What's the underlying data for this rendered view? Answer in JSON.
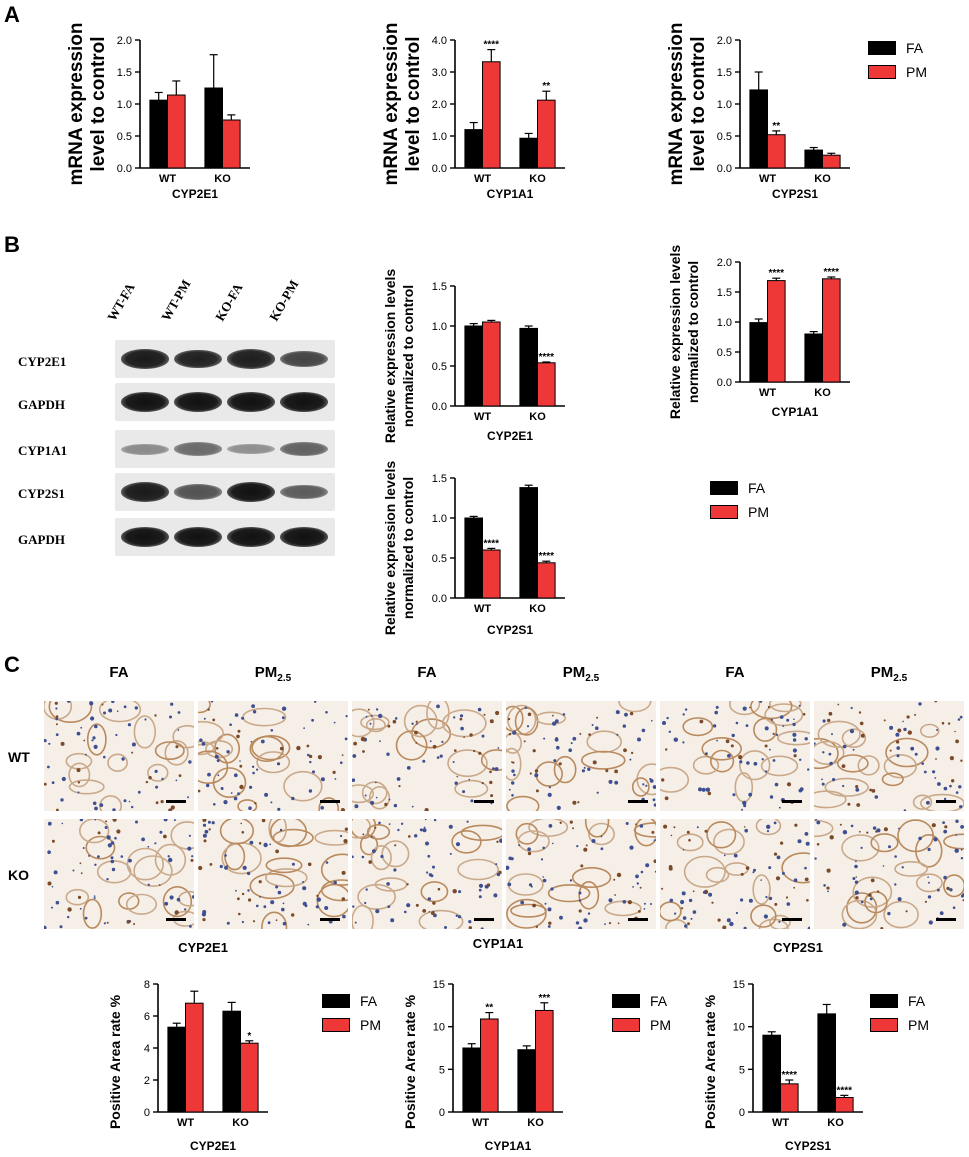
{
  "panel_letters": {
    "a": "A",
    "b": "B",
    "c": "C"
  },
  "colors": {
    "fa": "#000000",
    "pm": "#ee3838"
  },
  "legend": {
    "fa": "FA",
    "pm": "PM"
  },
  "blot": {
    "lanes": [
      "WT-FA",
      "WT-PM",
      "KO-FA",
      "KO-PM"
    ],
    "rows": [
      {
        "label": "CYP2E1",
        "intensities": [
          0.95,
          0.9,
          0.92,
          0.7
        ]
      },
      {
        "label": "GAPDH",
        "intensities": [
          1.0,
          1.0,
          1.0,
          1.0
        ]
      },
      {
        "label": "CYP1A1",
        "intensities": [
          0.25,
          0.45,
          0.22,
          0.5
        ]
      },
      {
        "label": "CYP2S1",
        "intensities": [
          0.95,
          0.6,
          1.0,
          0.55
        ]
      },
      {
        "label": "GAPDH",
        "intensities": [
          1.0,
          1.0,
          1.0,
          1.0
        ]
      }
    ]
  },
  "ihc": {
    "col_headers": [
      {
        "main": "FA",
        "sub": ""
      },
      {
        "main": "PM",
        "sub": "2.5"
      },
      {
        "main": "FA",
        "sub": ""
      },
      {
        "main": "PM",
        "sub": "2.5"
      },
      {
        "main": "FA",
        "sub": ""
      },
      {
        "main": "PM",
        "sub": "2.5"
      }
    ],
    "row_labels": [
      "WT",
      "KO"
    ]
  },
  "chart_data": [
    {
      "id": "a1",
      "type": "bar",
      "categories": [
        "WT",
        "KO"
      ],
      "series": [
        {
          "name": "FA",
          "values": [
            1.06,
            1.25
          ],
          "errors": [
            0.12,
            0.52
          ],
          "sig": [
            "",
            ""
          ]
        },
        {
          "name": "PM",
          "values": [
            1.14,
            0.75
          ],
          "errors": [
            0.22,
            0.08
          ],
          "sig": [
            "",
            ""
          ]
        }
      ],
      "xlabel": "CYP2E1",
      "ylabel": [
        "mRNA expression",
        "level to control"
      ],
      "ylim": [
        0,
        2.0
      ],
      "yticks": [
        "0.0",
        "0.5",
        "1.0",
        "1.5",
        "2.0"
      ],
      "ytick_values": [
        0,
        0.5,
        1.0,
        1.5,
        2.0
      ]
    },
    {
      "id": "a2",
      "type": "bar",
      "categories": [
        "WT",
        "KO"
      ],
      "series": [
        {
          "name": "FA",
          "values": [
            1.2,
            0.93
          ],
          "errors": [
            0.22,
            0.15
          ],
          "sig": [
            "",
            ""
          ]
        },
        {
          "name": "PM",
          "values": [
            3.32,
            2.12
          ],
          "errors": [
            0.38,
            0.28
          ],
          "sig": [
            "****",
            "**"
          ]
        }
      ],
      "xlabel": "CYP1A1",
      "ylabel": [
        "mRNA expression",
        "level to control"
      ],
      "ylim": [
        0,
        4.0
      ],
      "yticks": [
        "0.0",
        "1.0",
        "2.0",
        "3.0",
        "4.0"
      ],
      "ytick_values": [
        0,
        1,
        2,
        3,
        4
      ]
    },
    {
      "id": "a3",
      "type": "bar",
      "categories": [
        "WT",
        "KO"
      ],
      "series": [
        {
          "name": "FA",
          "values": [
            1.22,
            0.28
          ],
          "errors": [
            0.28,
            0.04
          ],
          "sig": [
            "",
            ""
          ]
        },
        {
          "name": "PM",
          "values": [
            0.52,
            0.2
          ],
          "errors": [
            0.06,
            0.03
          ],
          "sig": [
            "**",
            ""
          ]
        }
      ],
      "xlabel": "CYP2S1",
      "ylabel": [
        "mRNA expression",
        "level to control"
      ],
      "ylim": [
        0,
        2.0
      ],
      "yticks": [
        "0.0",
        "0.5",
        "1.0",
        "1.5",
        "2.0"
      ],
      "ytick_values": [
        0,
        0.5,
        1.0,
        1.5,
        2.0
      ]
    },
    {
      "id": "b1",
      "type": "bar",
      "categories": [
        "WT",
        "KO"
      ],
      "series": [
        {
          "name": "FA",
          "values": [
            1.0,
            0.97
          ],
          "errors": [
            0.03,
            0.03
          ],
          "sig": [
            "",
            ""
          ]
        },
        {
          "name": "PM",
          "values": [
            1.05,
            0.54
          ],
          "errors": [
            0.02,
            0.01
          ],
          "sig": [
            "",
            "****"
          ]
        }
      ],
      "xlabel": "CYP2E1",
      "ylabel": [
        "Relative expression levels",
        "normalized to control"
      ],
      "ylim": [
        0,
        1.5
      ],
      "yticks": [
        "0.0",
        "0.5",
        "1.0",
        "1.5"
      ],
      "ytick_values": [
        0,
        0.5,
        1.0,
        1.5
      ]
    },
    {
      "id": "b2",
      "type": "bar",
      "categories": [
        "WT",
        "KO"
      ],
      "series": [
        {
          "name": "FA",
          "values": [
            0.99,
            0.8
          ],
          "errors": [
            0.06,
            0.04
          ],
          "sig": [
            "",
            ""
          ]
        },
        {
          "name": "PM",
          "values": [
            1.69,
            1.72
          ],
          "errors": [
            0.04,
            0.03
          ],
          "sig": [
            "****",
            "****"
          ]
        }
      ],
      "xlabel": "CYP1A1",
      "ylabel": [
        "Relative expression levels",
        "normalized to control"
      ],
      "ylim": [
        0,
        2.0
      ],
      "yticks": [
        "0.0",
        "0.5",
        "1.0",
        "1.5",
        "2.0"
      ],
      "ytick_values": [
        0,
        0.5,
        1.0,
        1.5,
        2.0
      ]
    },
    {
      "id": "b3",
      "type": "bar",
      "categories": [
        "WT",
        "KO"
      ],
      "series": [
        {
          "name": "FA",
          "values": [
            1.0,
            1.38
          ],
          "errors": [
            0.02,
            0.03
          ],
          "sig": [
            "",
            ""
          ]
        },
        {
          "name": "PM",
          "values": [
            0.6,
            0.44
          ],
          "errors": [
            0.02,
            0.02
          ],
          "sig": [
            "****",
            "****"
          ]
        }
      ],
      "xlabel": "CYP2S1",
      "ylabel": [
        "Relative expression levels",
        "normalized to control"
      ],
      "ylim": [
        0,
        1.5
      ],
      "yticks": [
        "0.0",
        "0.5",
        "1.0",
        "1.5"
      ],
      "ytick_values": [
        0,
        0.5,
        1.0,
        1.5
      ]
    },
    {
      "id": "c1",
      "type": "bar",
      "categories": [
        "WT",
        "KO"
      ],
      "title": "CYP2E1",
      "series": [
        {
          "name": "FA",
          "values": [
            5.3,
            6.3
          ],
          "errors": [
            0.25,
            0.55
          ],
          "sig": [
            "",
            ""
          ]
        },
        {
          "name": "PM",
          "values": [
            6.8,
            4.3
          ],
          "errors": [
            0.75,
            0.15
          ],
          "sig": [
            "",
            "*"
          ]
        }
      ],
      "xlabel": "CYP2E1",
      "ylabel": [
        "Positive Area rate %"
      ],
      "ylim": [
        0,
        8
      ],
      "yticks": [
        "0",
        "2",
        "4",
        "6",
        "8"
      ],
      "ytick_values": [
        0,
        2,
        4,
        6,
        8
      ]
    },
    {
      "id": "c2",
      "type": "bar",
      "categories": [
        "WT",
        "KO"
      ],
      "title": "CYP1A1",
      "series": [
        {
          "name": "FA",
          "values": [
            7.5,
            7.3
          ],
          "errors": [
            0.5,
            0.45
          ],
          "sig": [
            "",
            ""
          ]
        },
        {
          "name": "PM",
          "values": [
            10.9,
            11.9
          ],
          "errors": [
            0.75,
            0.9
          ],
          "sig": [
            "**",
            "***"
          ]
        }
      ],
      "xlabel": "CYP1A1",
      "ylabel": [
        "Positive Area rate %"
      ],
      "ylim": [
        0,
        15
      ],
      "yticks": [
        "0",
        "5",
        "10",
        "15"
      ],
      "ytick_values": [
        0,
        5,
        10,
        15
      ]
    },
    {
      "id": "c3",
      "type": "bar",
      "categories": [
        "WT",
        "KO"
      ],
      "title": "CYP2S1",
      "series": [
        {
          "name": "FA",
          "values": [
            9.0,
            11.5
          ],
          "errors": [
            0.4,
            1.1
          ],
          "sig": [
            "",
            ""
          ]
        },
        {
          "name": "PM",
          "values": [
            3.3,
            1.7
          ],
          "errors": [
            0.45,
            0.25
          ],
          "sig": [
            "****",
            "****"
          ]
        }
      ],
      "xlabel": "CYP2S1",
      "ylabel": [
        "Positive Area rate %"
      ],
      "ylim": [
        0,
        15
      ],
      "yticks": [
        "0",
        "5",
        "10",
        "15"
      ],
      "ytick_values": [
        0,
        5,
        10,
        15
      ]
    }
  ]
}
